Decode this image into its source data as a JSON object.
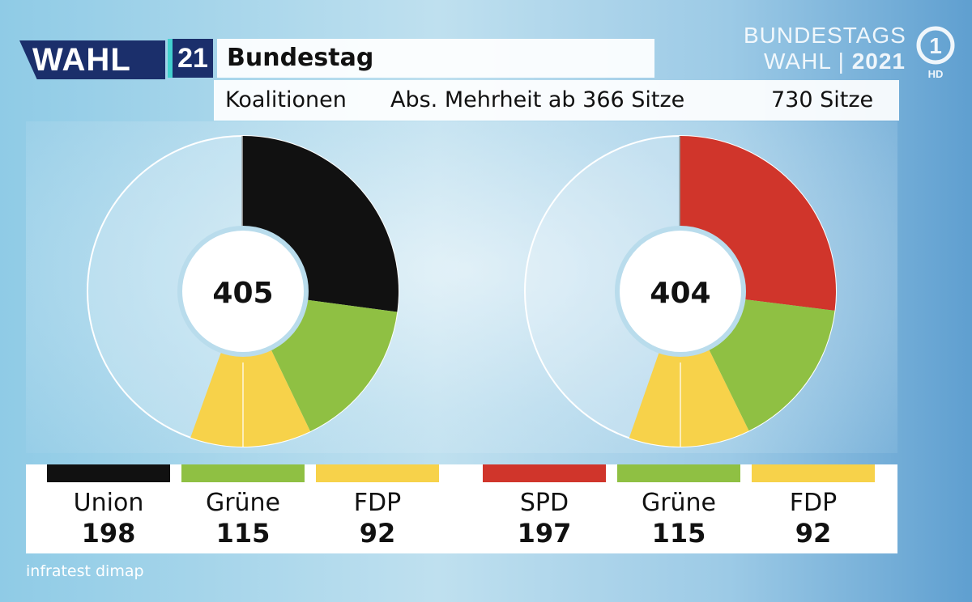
{
  "header": {
    "logo_word": "WAHL",
    "logo_number": "21",
    "title": "Bundestag",
    "subtitle_left": "Koalitionen",
    "subtitle_mid": "Abs. Mehrheit ab 366 Sitze",
    "subtitle_right": "730 Sitze"
  },
  "brand": {
    "line1": "BUNDESTAGS",
    "line2_word": "WAHL",
    "line2_sep": "|",
    "line2_year": "2021",
    "channel_mark": "1",
    "channel_hd": "HD"
  },
  "colors": {
    "union": "#111111",
    "spd": "#d0352b",
    "gruene": "#8fc043",
    "fdp": "#f7d24a"
  },
  "chart_data": [
    {
      "type": "pie",
      "total_seats": 730,
      "center_value": "405",
      "series": [
        {
          "name": "Union",
          "value": 198,
          "color": "#111111"
        },
        {
          "name": "Grüne",
          "value": 115,
          "color": "#8fc043"
        },
        {
          "name": "FDP",
          "value": 92,
          "color": "#f7d24a"
        }
      ]
    },
    {
      "type": "pie",
      "total_seats": 730,
      "center_value": "404",
      "series": [
        {
          "name": "SPD",
          "value": 197,
          "color": "#d0352b"
        },
        {
          "name": "Grüne",
          "value": 115,
          "color": "#8fc043"
        },
        {
          "name": "FDP",
          "value": 92,
          "color": "#f7d24a"
        }
      ]
    }
  ],
  "legend": [
    {
      "name": "Union",
      "value": "198",
      "color": "#111111"
    },
    {
      "name": "Grüne",
      "value": "115",
      "color": "#8fc043"
    },
    {
      "name": "FDP",
      "value": "92",
      "color": "#f7d24a"
    },
    {
      "name": "SPD",
      "value": "197",
      "color": "#d0352b"
    },
    {
      "name": "Grüne",
      "value": "115",
      "color": "#8fc043"
    },
    {
      "name": "FDP",
      "value": "92",
      "color": "#f7d24a"
    }
  ],
  "source": "infratest dimap"
}
